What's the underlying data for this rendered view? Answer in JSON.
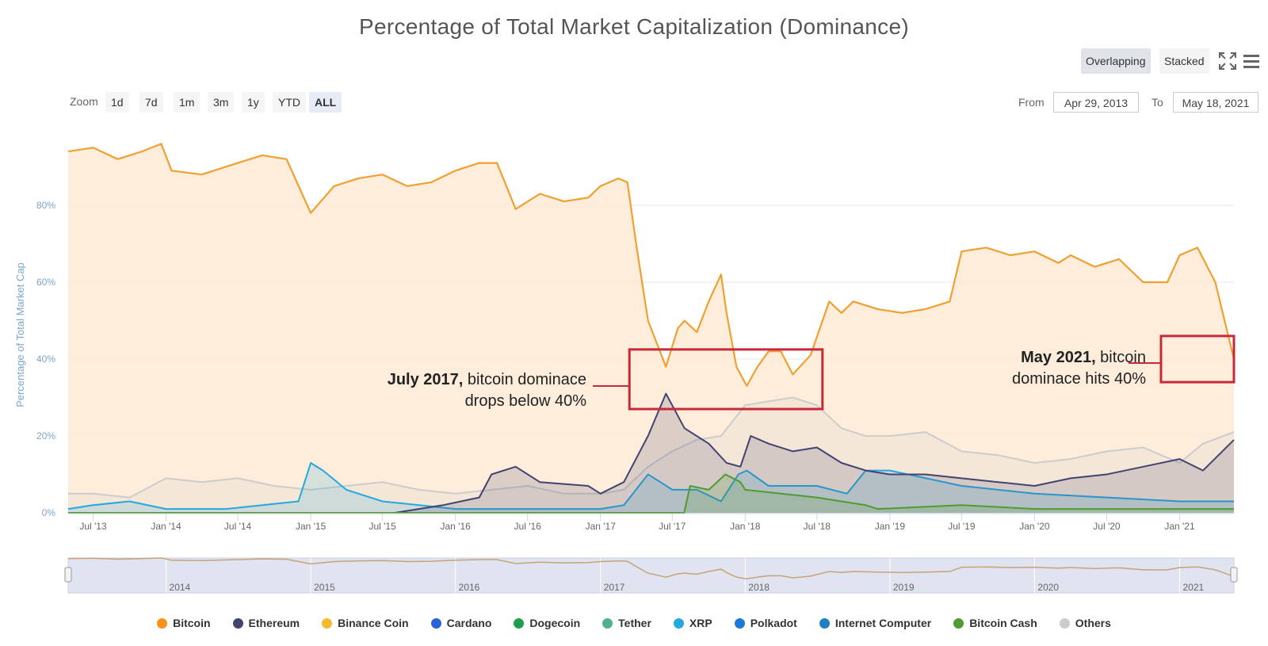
{
  "title": "Percentage of Total Market Capitalization (Dominance)",
  "controls": {
    "modes": [
      "Overlapping",
      "Stacked"
    ],
    "active_mode": "Overlapping",
    "zoom_label": "Zoom",
    "zoom_buttons": [
      "1d",
      "7d",
      "1m",
      "3m",
      "1y",
      "YTD",
      "ALL"
    ],
    "active_zoom": "ALL",
    "from_label": "From",
    "from_value": "Apr 29, 2013",
    "to_label": "To",
    "to_value": "May 18, 2021",
    "icons": [
      "expand-icon",
      "menu-icon"
    ]
  },
  "annotations": [
    {
      "bold": "July 2017,",
      "rest": " bitcoin dominace",
      "line2": "drops below 40%"
    },
    {
      "bold": "May 2021,",
      "rest": " bitcoin",
      "line2": "dominace hits 40%"
    }
  ],
  "colors": {
    "bitcoin": "#f7931a",
    "ethereum": "#434371",
    "binance": "#f3ba2f",
    "cardano": "#2962d9",
    "dogecoin": "#1e9e4a",
    "tether": "#50af95",
    "xrp": "#23a8e0",
    "polkadot": "#1a7ad4",
    "icp": "#1f7fc4",
    "bch": "#4f9c2e",
    "others": "#cccccc",
    "highlight": "#c7283a",
    "bitcoin_fill": "#fdebd6"
  },
  "chart_data": {
    "type": "area",
    "ylabel": "Percentage of Total Market Cap",
    "yticks": [
      "0%",
      "20%",
      "40%",
      "60%",
      "80%"
    ],
    "ytick_values": [
      0,
      20,
      40,
      60,
      80
    ],
    "ylim": [
      0,
      100
    ],
    "xlim": [
      "2013-04-29",
      "2021-05-18"
    ],
    "xticks": [
      "Jul '13",
      "Jan '14",
      "Jul '14",
      "Jan '15",
      "Jul '15",
      "Jan '16",
      "Jul '16",
      "Jan '17",
      "Jul '17",
      "Jan '18",
      "Jul '18",
      "Jan '19",
      "Jul '19",
      "Jan '20",
      "Jul '20",
      "Jan '21"
    ],
    "xtick_dates": [
      "2013-07-01",
      "2014-01-01",
      "2014-07-01",
      "2015-01-01",
      "2015-07-01",
      "2016-01-01",
      "2016-07-01",
      "2017-01-01",
      "2017-07-01",
      "2018-01-01",
      "2018-07-01",
      "2019-01-01",
      "2019-07-01",
      "2020-01-01",
      "2020-07-01",
      "2021-01-01"
    ],
    "navigator_labels": [
      "2014",
      "2015",
      "2016",
      "2017",
      "2018",
      "2019",
      "2020",
      "2021"
    ],
    "navigator_dates": [
      "2014-01-01",
      "2015-01-01",
      "2016-01-01",
      "2017-01-01",
      "2018-01-01",
      "2019-01-01",
      "2020-01-01",
      "2021-01-01"
    ],
    "grid": true,
    "legend_position": "bottom-center",
    "series": [
      {
        "name": "Others",
        "color_key": "others",
        "dates": [
          "2013-04-29",
          "2013-07-01",
          "2013-10-01",
          "2014-01-01",
          "2014-04-01",
          "2014-07-01",
          "2014-10-01",
          "2015-01-01",
          "2015-04-01",
          "2015-07-01",
          "2015-10-01",
          "2016-01-01",
          "2016-04-01",
          "2016-07-01",
          "2016-10-01",
          "2017-01-01",
          "2017-03-01",
          "2017-05-01",
          "2017-07-01",
          "2017-09-01",
          "2017-11-01",
          "2018-01-01",
          "2018-03-01",
          "2018-05-01",
          "2018-07-01",
          "2018-09-01",
          "2018-11-01",
          "2019-01-01",
          "2019-04-01",
          "2019-07-01",
          "2019-10-01",
          "2020-01-01",
          "2020-04-01",
          "2020-07-01",
          "2020-10-01",
          "2021-01-01",
          "2021-03-01",
          "2021-05-18"
        ],
        "values": [
          5,
          5,
          4,
          9,
          8,
          9,
          7,
          6,
          7,
          8,
          6,
          5,
          6,
          7,
          5,
          5,
          6,
          12,
          16,
          19,
          20,
          28,
          29,
          30,
          28,
          22,
          20,
          20,
          21,
          16,
          15,
          13,
          14,
          16,
          17,
          13,
          18,
          21
        ]
      },
      {
        "name": "XRP",
        "color_key": "xrp",
        "dates": [
          "2013-04-29",
          "2013-07-01",
          "2013-10-01",
          "2014-01-01",
          "2014-06-01",
          "2014-12-01",
          "2015-01-01",
          "2015-02-01",
          "2015-04-01",
          "2015-07-01",
          "2015-10-01",
          "2016-01-01",
          "2016-07-01",
          "2017-01-01",
          "2017-03-01",
          "2017-05-01",
          "2017-06-01",
          "2017-07-01",
          "2017-09-01",
          "2017-11-01",
          "2017-12-15",
          "2018-01-05",
          "2018-03-01",
          "2018-07-01",
          "2018-09-15",
          "2018-11-01",
          "2019-01-01",
          "2019-07-01",
          "2020-01-01",
          "2020-07-01",
          "2021-01-01",
          "2021-05-18"
        ],
        "values": [
          1,
          2,
          3,
          1,
          1,
          3,
          13,
          11,
          6,
          3,
          2,
          1,
          1,
          1,
          2,
          10,
          8,
          6,
          6,
          3,
          10,
          11,
          7,
          7,
          5,
          11,
          11,
          7,
          5,
          4,
          3,
          3
        ]
      },
      {
        "name": "Ethereum",
        "color_key": "ethereum",
        "dates": [
          "2013-04-29",
          "2015-08-01",
          "2015-12-01",
          "2016-03-01",
          "2016-04-01",
          "2016-06-01",
          "2016-08-01",
          "2016-12-01",
          "2017-01-01",
          "2017-03-01",
          "2017-05-01",
          "2017-06-15",
          "2017-08-01",
          "2017-10-01",
          "2017-11-15",
          "2017-12-20",
          "2018-01-15",
          "2018-03-01",
          "2018-05-01",
          "2018-07-01",
          "2018-09-01",
          "2018-11-01",
          "2019-01-01",
          "2019-04-01",
          "2019-07-01",
          "2019-10-01",
          "2020-01-01",
          "2020-04-01",
          "2020-07-01",
          "2020-10-01",
          "2021-01-01",
          "2021-03-01",
          "2021-05-18"
        ],
        "values": [
          0,
          0,
          2,
          4,
          10,
          12,
          8,
          7,
          5,
          8,
          20,
          31,
          22,
          18,
          13,
          12,
          20,
          18,
          16,
          17,
          13,
          11,
          10,
          10,
          9,
          8,
          7,
          9,
          10,
          12,
          14,
          11,
          19
        ]
      },
      {
        "name": "Bitcoin Cash",
        "color_key": "bch",
        "dates": [
          "2013-04-29",
          "2017-07-31",
          "2017-08-15",
          "2017-10-01",
          "2017-11-12",
          "2017-12-20",
          "2018-01-01",
          "2018-04-01",
          "2018-07-01",
          "2018-11-01",
          "2018-12-01",
          "2019-07-01",
          "2020-01-01",
          "2021-05-18"
        ],
        "values": [
          0,
          0,
          7,
          6,
          10,
          8,
          6,
          5,
          4,
          2,
          1,
          2,
          1,
          1
        ]
      },
      {
        "name": "Bitcoin",
        "color_key": "bitcoin",
        "dates": [
          "2013-04-29",
          "2013-07-01",
          "2013-09-01",
          "2013-11-01",
          "2013-12-20",
          "2014-01-15",
          "2014-04-01",
          "2014-07-01",
          "2014-09-01",
          "2014-11-01",
          "2015-01-01",
          "2015-03-01",
          "2015-05-01",
          "2015-07-01",
          "2015-09-01",
          "2015-11-01",
          "2016-01-01",
          "2016-03-01",
          "2016-04-15",
          "2016-06-01",
          "2016-08-01",
          "2016-10-01",
          "2016-12-01",
          "2017-01-01",
          "2017-02-15",
          "2017-03-10",
          "2017-04-01",
          "2017-05-01",
          "2017-06-15",
          "2017-07-15",
          "2017-08-01",
          "2017-09-01",
          "2017-10-01",
          "2017-11-01",
          "2017-11-15",
          "2017-12-10",
          "2018-01-05",
          "2018-02-01",
          "2018-03-01",
          "2018-04-01",
          "2018-05-01",
          "2018-06-15",
          "2018-08-01",
          "2018-09-01",
          "2018-10-01",
          "2018-12-01",
          "2019-02-01",
          "2019-04-01",
          "2019-06-01",
          "2019-07-01",
          "2019-09-01",
          "2019-11-01",
          "2020-01-01",
          "2020-03-01",
          "2020-04-01",
          "2020-06-01",
          "2020-08-01",
          "2020-10-01",
          "2020-12-01",
          "2021-01-01",
          "2021-02-15",
          "2021-04-01",
          "2021-05-18"
        ],
        "values": [
          94,
          95,
          92,
          94,
          96,
          89,
          88,
          91,
          93,
          92,
          78,
          85,
          87,
          88,
          85,
          86,
          89,
          91,
          91,
          79,
          83,
          81,
          82,
          85,
          87,
          86,
          70,
          50,
          38,
          48,
          50,
          47,
          55,
          62,
          52,
          38,
          33,
          38,
          42,
          42,
          36,
          41,
          55,
          52,
          55,
          53,
          52,
          53,
          55,
          68,
          69,
          67,
          68,
          65,
          67,
          64,
          66,
          60,
          60,
          67,
          69,
          60,
          40
        ]
      }
    ]
  }
}
